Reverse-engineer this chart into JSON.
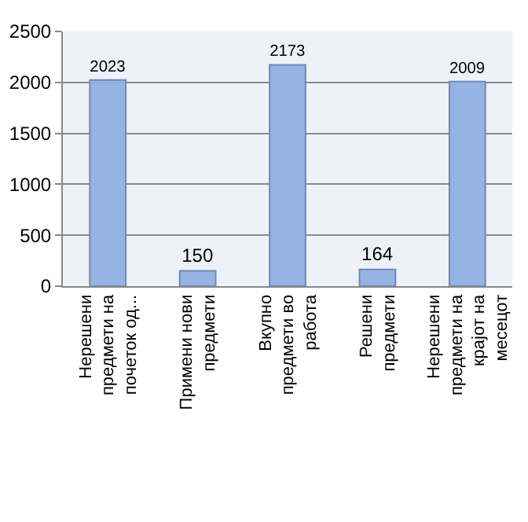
{
  "chart_data": {
    "type": "bar",
    "categories": [
      "Нерешени предмети на почеток од...",
      "Примени нови предмети",
      "Вкупно предмети во работа",
      "Решени предмети",
      "Нерешени предмети на крајот на месецот"
    ],
    "values": [
      2023,
      150,
      2173,
      164,
      2009
    ],
    "color": "#95b3e3",
    "ylim": [
      0,
      2500
    ],
    "yticks": [
      0,
      500,
      1000,
      1500,
      2000,
      2500
    ],
    "grid": "y",
    "data_labels": true
  }
}
